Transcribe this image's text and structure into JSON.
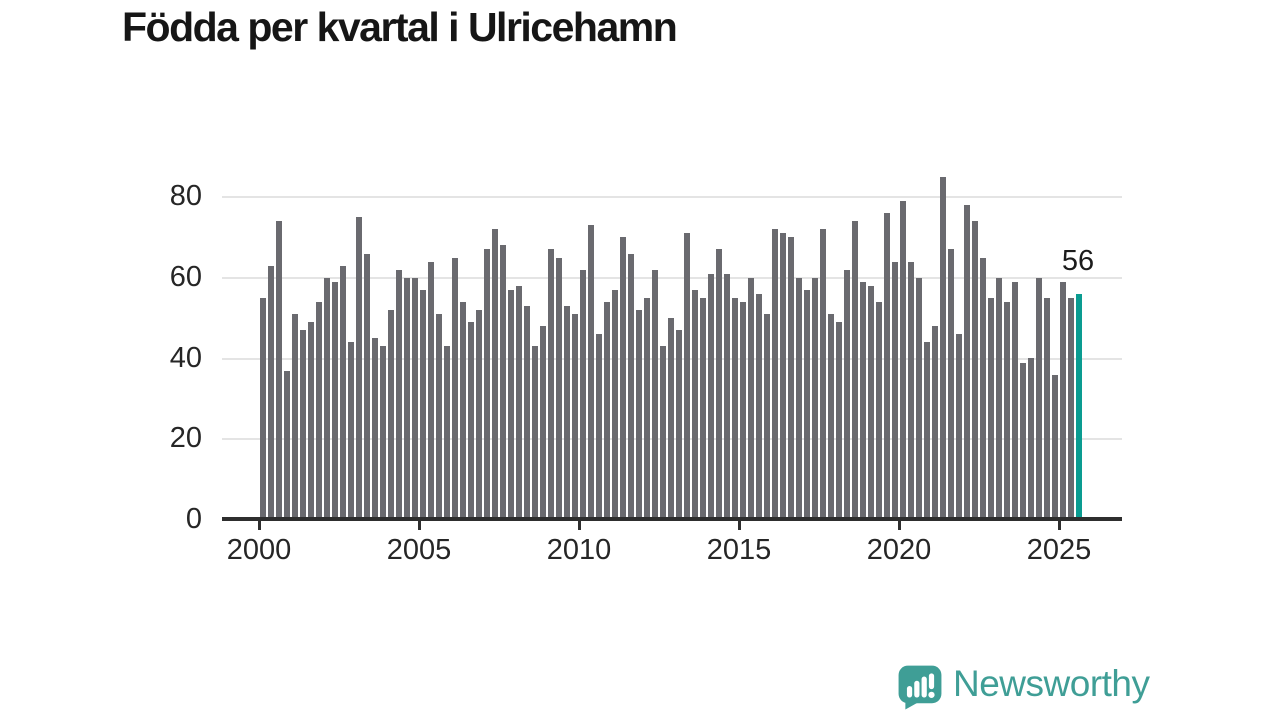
{
  "title": "Födda per kvartal i Ulricehamn",
  "annotation": {
    "last_value_label": "56"
  },
  "branding": {
    "name": "Newsworthy",
    "icon": "speech-bubble-bar-chart-icon"
  },
  "colors": {
    "bar": "#6a6a6f",
    "highlight": "#0a9c91",
    "axis": "#2e2e2e",
    "grid": "#e4e4e4",
    "text": "#1c1c1c",
    "brand": "#3f9e96"
  },
  "chart_data": {
    "type": "bar",
    "title": "Födda per kvartal i Ulricehamn",
    "x_unit": "quarter",
    "x_range": [
      "2000-Q1",
      "2025-Q3"
    ],
    "xlabel": "",
    "ylabel": "",
    "ylim": [
      0,
      85
    ],
    "grid": true,
    "y_ticks": [
      0,
      20,
      40,
      60,
      80
    ],
    "x_ticks": [
      "2000",
      "2005",
      "2010",
      "2015",
      "2020",
      "2025"
    ],
    "highlight_last_bar": true,
    "last_bar_label": "56",
    "values": [
      55,
      63,
      74,
      37,
      51,
      47,
      49,
      54,
      60,
      59,
      63,
      44,
      75,
      66,
      45,
      43,
      52,
      62,
      60,
      60,
      57,
      64,
      51,
      43,
      65,
      54,
      49,
      52,
      67,
      72,
      68,
      57,
      58,
      53,
      43,
      48,
      67,
      65,
      53,
      51,
      62,
      73,
      46,
      54,
      57,
      70,
      66,
      52,
      55,
      62,
      43,
      50,
      47,
      71,
      57,
      55,
      61,
      67,
      61,
      55,
      54,
      60,
      56,
      51,
      72,
      71,
      70,
      60,
      57,
      60,
      72,
      51,
      49,
      62,
      74,
      59,
      58,
      54,
      76,
      64,
      79,
      64,
      60,
      44,
      48,
      85,
      67,
      46,
      78,
      74,
      65,
      55,
      60,
      54,
      59,
      39,
      40,
      60,
      55,
      36,
      59,
      55,
      56
    ]
  }
}
